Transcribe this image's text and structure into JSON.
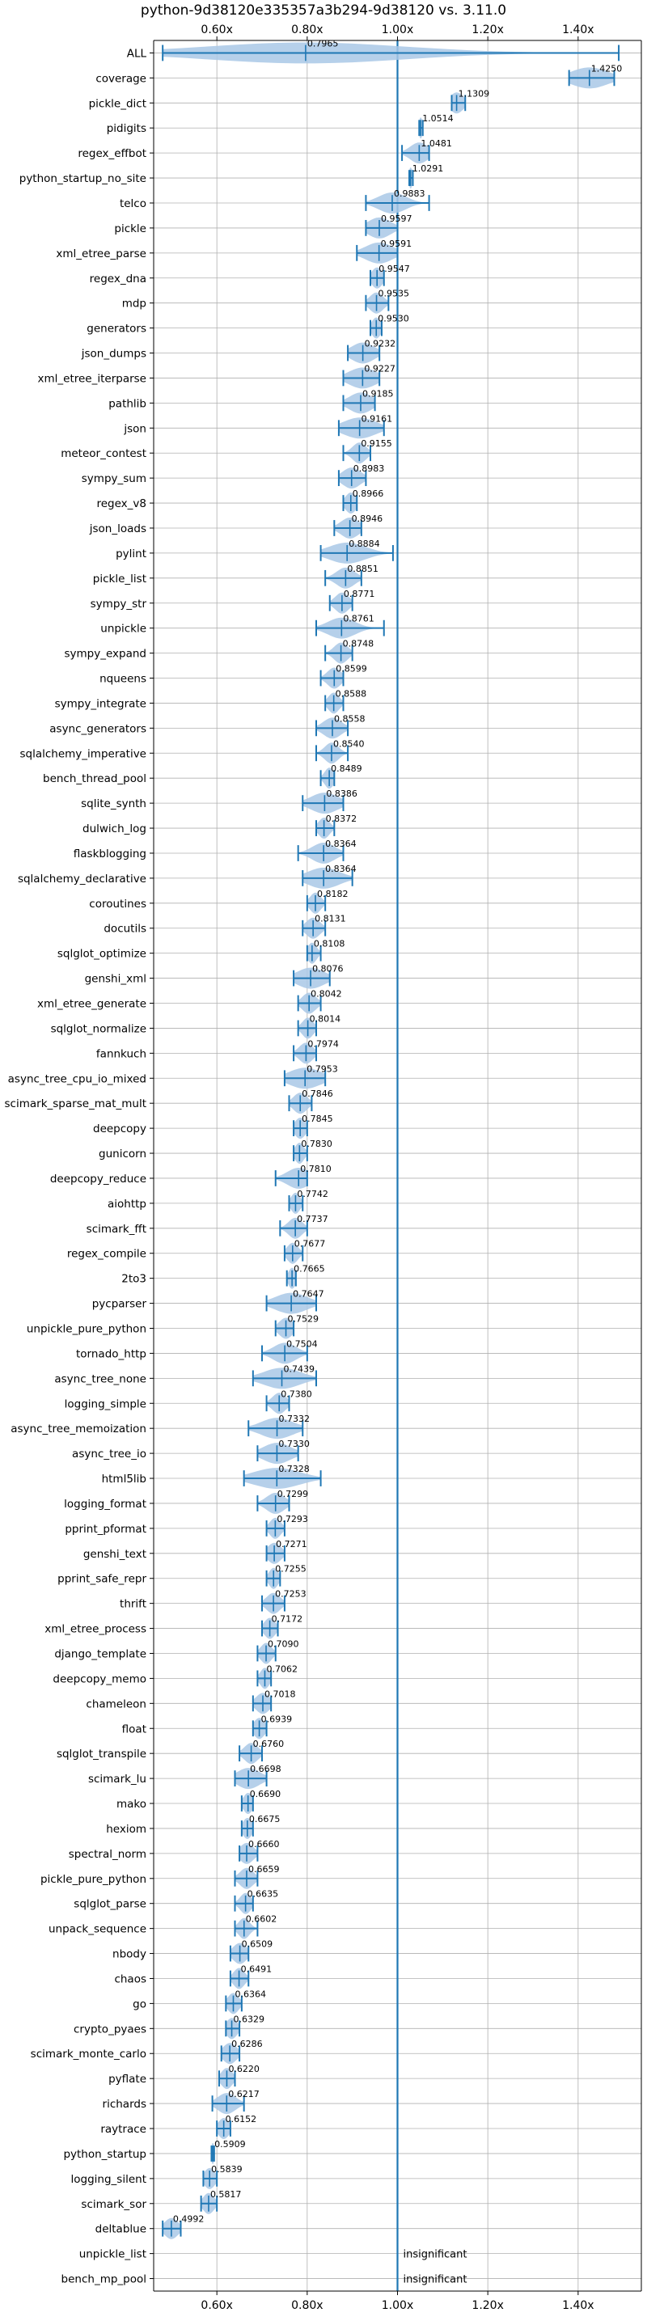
{
  "chart_data": {
    "type": "violin",
    "title": "python-9d38120e335357a3b294-9d38120 vs. 3.11.0",
    "xlabel": "",
    "ylabel": "",
    "xlim": [
      0.46,
      1.54
    ],
    "x_ticks": [
      0.6,
      0.8,
      1.0,
      1.2,
      1.4
    ],
    "x_tick_labels": [
      "0.60x",
      "0.80x",
      "1.00x",
      "1.20x",
      "1.40x"
    ],
    "reference_line": 1.0,
    "grid": true,
    "colors": {
      "violin": "#a9c8e6",
      "line": "#1f77b4",
      "grid": "#b0b0b0"
    },
    "annotation_text_for_missing": "insignificant",
    "benchmarks": [
      {
        "name": "ALL",
        "value": 0.7965,
        "label": "0.7965",
        "lo": 0.48,
        "hi": 1.49,
        "spread": 0.22
      },
      {
        "name": "coverage",
        "value": 1.425,
        "label": "1.4250",
        "lo": 1.38,
        "hi": 1.48,
        "spread": 0.04
      },
      {
        "name": "pickle_dict",
        "value": 1.1309,
        "label": "1.1309",
        "lo": 1.12,
        "hi": 1.15,
        "spread": 0.015
      },
      {
        "name": "pidigits",
        "value": 1.0514,
        "label": "1.0514",
        "lo": 1.048,
        "hi": 1.056,
        "spread": 0.004
      },
      {
        "name": "regex_effbot",
        "value": 1.0481,
        "label": "1.0481",
        "lo": 1.01,
        "hi": 1.07,
        "spread": 0.02
      },
      {
        "name": "python_startup_no_site",
        "value": 1.0291,
        "label": "1.0291",
        "lo": 1.026,
        "hi": 1.034,
        "spread": 0.004
      },
      {
        "name": "telco",
        "value": 0.9883,
        "label": "0.9883",
        "lo": 0.93,
        "hi": 1.07,
        "spread": 0.03
      },
      {
        "name": "pickle",
        "value": 0.9597,
        "label": "0.9597",
        "lo": 0.93,
        "hi": 1.0,
        "spread": 0.025
      },
      {
        "name": "xml_etree_parse",
        "value": 0.9591,
        "label": "0.9591",
        "lo": 0.91,
        "hi": 1.0,
        "spread": 0.03
      },
      {
        "name": "regex_dna",
        "value": 0.9547,
        "label": "0.9547",
        "lo": 0.94,
        "hi": 0.97,
        "spread": 0.012
      },
      {
        "name": "mdp",
        "value": 0.9535,
        "label": "0.9535",
        "lo": 0.93,
        "hi": 0.98,
        "spread": 0.015
      },
      {
        "name": "generators",
        "value": 0.953,
        "label": "0.9530",
        "lo": 0.94,
        "hi": 0.965,
        "spread": 0.01
      },
      {
        "name": "json_dumps",
        "value": 0.9232,
        "label": "0.9232",
        "lo": 0.89,
        "hi": 0.96,
        "spread": 0.025
      },
      {
        "name": "xml_etree_iterparse",
        "value": 0.9227,
        "label": "0.9227",
        "lo": 0.88,
        "hi": 0.96,
        "spread": 0.03
      },
      {
        "name": "pathlib",
        "value": 0.9185,
        "label": "0.9185",
        "lo": 0.88,
        "hi": 0.95,
        "spread": 0.025
      },
      {
        "name": "json",
        "value": 0.9161,
        "label": "0.9161",
        "lo": 0.87,
        "hi": 0.97,
        "spread": 0.035
      },
      {
        "name": "meteor_contest",
        "value": 0.9155,
        "label": "0.9155",
        "lo": 0.88,
        "hi": 0.94,
        "spread": 0.015
      },
      {
        "name": "sympy_sum",
        "value": 0.8983,
        "label": "0.8983",
        "lo": 0.87,
        "hi": 0.93,
        "spread": 0.02
      },
      {
        "name": "regex_v8",
        "value": 0.8966,
        "label": "0.8966",
        "lo": 0.88,
        "hi": 0.91,
        "spread": 0.012
      },
      {
        "name": "json_loads",
        "value": 0.8946,
        "label": "0.8946",
        "lo": 0.86,
        "hi": 0.92,
        "spread": 0.02
      },
      {
        "name": "pylint",
        "value": 0.8884,
        "label": "0.8884",
        "lo": 0.83,
        "hi": 0.99,
        "spread": 0.04
      },
      {
        "name": "pickle_list",
        "value": 0.8851,
        "label": "0.8851",
        "lo": 0.84,
        "hi": 0.92,
        "spread": 0.02
      },
      {
        "name": "sympy_str",
        "value": 0.8771,
        "label": "0.8771",
        "lo": 0.85,
        "hi": 0.9,
        "spread": 0.015
      },
      {
        "name": "unpickle",
        "value": 0.8761,
        "label": "0.8761",
        "lo": 0.82,
        "hi": 0.97,
        "spread": 0.03
      },
      {
        "name": "sympy_expand",
        "value": 0.8748,
        "label": "0.8748",
        "lo": 0.84,
        "hi": 0.9,
        "spread": 0.015
      },
      {
        "name": "nqueens",
        "value": 0.8599,
        "label": "0.8599",
        "lo": 0.83,
        "hi": 0.88,
        "spread": 0.015
      },
      {
        "name": "sympy_integrate",
        "value": 0.8588,
        "label": "0.8588",
        "lo": 0.84,
        "hi": 0.88,
        "spread": 0.012
      },
      {
        "name": "async_generators",
        "value": 0.8558,
        "label": "0.8558",
        "lo": 0.82,
        "hi": 0.89,
        "spread": 0.02
      },
      {
        "name": "sqlalchemy_imperative",
        "value": 0.854,
        "label": "0.8540",
        "lo": 0.82,
        "hi": 0.89,
        "spread": 0.015
      },
      {
        "name": "bench_thread_pool",
        "value": 0.8489,
        "label": "0.8489",
        "lo": 0.83,
        "hi": 0.86,
        "spread": 0.01
      },
      {
        "name": "sqlite_synth",
        "value": 0.8386,
        "label": "0.8386",
        "lo": 0.79,
        "hi": 0.88,
        "spread": 0.03
      },
      {
        "name": "dulwich_log",
        "value": 0.8372,
        "label": "0.8372",
        "lo": 0.82,
        "hi": 0.86,
        "spread": 0.012
      },
      {
        "name": "flaskblogging",
        "value": 0.8364,
        "label": "0.8364",
        "lo": 0.78,
        "hi": 0.88,
        "spread": 0.025
      },
      {
        "name": "sqlalchemy_declarative",
        "value": 0.8364,
        "label": "0.8364",
        "lo": 0.79,
        "hi": 0.9,
        "spread": 0.035
      },
      {
        "name": "coroutines",
        "value": 0.8182,
        "label": "0.8182",
        "lo": 0.8,
        "hi": 0.84,
        "spread": 0.012
      },
      {
        "name": "docutils",
        "value": 0.8131,
        "label": "0.8131",
        "lo": 0.79,
        "hi": 0.84,
        "spread": 0.015
      },
      {
        "name": "sqlglot_optimize",
        "value": 0.8108,
        "label": "0.8108",
        "lo": 0.8,
        "hi": 0.83,
        "spread": 0.01
      },
      {
        "name": "genshi_xml",
        "value": 0.8076,
        "label": "0.8076",
        "lo": 0.77,
        "hi": 0.85,
        "spread": 0.03
      },
      {
        "name": "xml_etree_generate",
        "value": 0.8042,
        "label": "0.8042",
        "lo": 0.78,
        "hi": 0.83,
        "spread": 0.015
      },
      {
        "name": "sqlglot_normalize",
        "value": 0.8014,
        "label": "0.8014",
        "lo": 0.78,
        "hi": 0.82,
        "spread": 0.012
      },
      {
        "name": "fannkuch",
        "value": 0.7974,
        "label": "0.7974",
        "lo": 0.77,
        "hi": 0.82,
        "spread": 0.015
      },
      {
        "name": "async_tree_cpu_io_mixed",
        "value": 0.7953,
        "label": "0.7953",
        "lo": 0.75,
        "hi": 0.84,
        "spread": 0.035
      },
      {
        "name": "scimark_sparse_mat_mult",
        "value": 0.7846,
        "label": "0.7846",
        "lo": 0.76,
        "hi": 0.81,
        "spread": 0.015
      },
      {
        "name": "deepcopy",
        "value": 0.7845,
        "label": "0.7845",
        "lo": 0.77,
        "hi": 0.8,
        "spread": 0.012
      },
      {
        "name": "gunicorn",
        "value": 0.783,
        "label": "0.7830",
        "lo": 0.77,
        "hi": 0.8,
        "spread": 0.01
      },
      {
        "name": "deepcopy_reduce",
        "value": 0.781,
        "label": "0.7810",
        "lo": 0.73,
        "hi": 0.8,
        "spread": 0.025
      },
      {
        "name": "aiohttp",
        "value": 0.7742,
        "label": "0.7742",
        "lo": 0.76,
        "hi": 0.79,
        "spread": 0.01
      },
      {
        "name": "scimark_fft",
        "value": 0.7737,
        "label": "0.7737",
        "lo": 0.74,
        "hi": 0.8,
        "spread": 0.015
      },
      {
        "name": "regex_compile",
        "value": 0.7677,
        "label": "0.7677",
        "lo": 0.75,
        "hi": 0.79,
        "spread": 0.012
      },
      {
        "name": "2to3",
        "value": 0.7665,
        "label": "0.7665",
        "lo": 0.755,
        "hi": 0.775,
        "spread": 0.008
      },
      {
        "name": "pycparser",
        "value": 0.7647,
        "label": "0.7647",
        "lo": 0.71,
        "hi": 0.82,
        "spread": 0.035
      },
      {
        "name": "unpickle_pure_python",
        "value": 0.7529,
        "label": "0.7529",
        "lo": 0.73,
        "hi": 0.77,
        "spread": 0.015
      },
      {
        "name": "tornado_http",
        "value": 0.7504,
        "label": "0.7504",
        "lo": 0.7,
        "hi": 0.8,
        "spread": 0.025
      },
      {
        "name": "async_tree_none",
        "value": 0.7439,
        "label": "0.7439",
        "lo": 0.68,
        "hi": 0.82,
        "spread": 0.04
      },
      {
        "name": "logging_simple",
        "value": 0.738,
        "label": "0.7380",
        "lo": 0.71,
        "hi": 0.76,
        "spread": 0.015
      },
      {
        "name": "async_tree_memoization",
        "value": 0.7332,
        "label": "0.7332",
        "lo": 0.67,
        "hi": 0.79,
        "spread": 0.035
      },
      {
        "name": "async_tree_io",
        "value": 0.733,
        "label": "0.7330",
        "lo": 0.69,
        "hi": 0.78,
        "spread": 0.03
      },
      {
        "name": "html5lib",
        "value": 0.7328,
        "label": "0.7328",
        "lo": 0.66,
        "hi": 0.83,
        "spread": 0.05
      },
      {
        "name": "logging_format",
        "value": 0.7299,
        "label": "0.7299",
        "lo": 0.69,
        "hi": 0.76,
        "spread": 0.02
      },
      {
        "name": "pprint_pformat",
        "value": 0.7293,
        "label": "0.7293",
        "lo": 0.71,
        "hi": 0.75,
        "spread": 0.012
      },
      {
        "name": "genshi_text",
        "value": 0.7271,
        "label": "0.7271",
        "lo": 0.71,
        "hi": 0.75,
        "spread": 0.015
      },
      {
        "name": "pprint_safe_repr",
        "value": 0.7255,
        "label": "0.7255",
        "lo": 0.71,
        "hi": 0.74,
        "spread": 0.01
      },
      {
        "name": "thrift",
        "value": 0.7253,
        "label": "0.7253",
        "lo": 0.7,
        "hi": 0.75,
        "spread": 0.015
      },
      {
        "name": "xml_etree_process",
        "value": 0.7172,
        "label": "0.7172",
        "lo": 0.7,
        "hi": 0.735,
        "spread": 0.012
      },
      {
        "name": "django_template",
        "value": 0.709,
        "label": "0.7090",
        "lo": 0.69,
        "hi": 0.73,
        "spread": 0.012
      },
      {
        "name": "deepcopy_memo",
        "value": 0.7062,
        "label": "0.7062",
        "lo": 0.69,
        "hi": 0.72,
        "spread": 0.01
      },
      {
        "name": "chameleon",
        "value": 0.7018,
        "label": "0.7018",
        "lo": 0.68,
        "hi": 0.72,
        "spread": 0.015
      },
      {
        "name": "float",
        "value": 0.6939,
        "label": "0.6939",
        "lo": 0.68,
        "hi": 0.71,
        "spread": 0.012
      },
      {
        "name": "sqlglot_transpile",
        "value": 0.676,
        "label": "0.6760",
        "lo": 0.65,
        "hi": 0.7,
        "spread": 0.015
      },
      {
        "name": "scimark_lu",
        "value": 0.6698,
        "label": "0.6698",
        "lo": 0.64,
        "hi": 0.71,
        "spread": 0.025
      },
      {
        "name": "mako",
        "value": 0.669,
        "label": "0.6690",
        "lo": 0.655,
        "hi": 0.68,
        "spread": 0.01
      },
      {
        "name": "hexiom",
        "value": 0.6675,
        "label": "0.6675",
        "lo": 0.655,
        "hi": 0.68,
        "spread": 0.01
      },
      {
        "name": "spectral_norm",
        "value": 0.666,
        "label": "0.6660",
        "lo": 0.65,
        "hi": 0.69,
        "spread": 0.015
      },
      {
        "name": "pickle_pure_python",
        "value": 0.6659,
        "label": "0.6659",
        "lo": 0.64,
        "hi": 0.69,
        "spread": 0.015
      },
      {
        "name": "sqlglot_parse",
        "value": 0.6635,
        "label": "0.6635",
        "lo": 0.64,
        "hi": 0.68,
        "spread": 0.012
      },
      {
        "name": "unpack_sequence",
        "value": 0.6602,
        "label": "0.6602",
        "lo": 0.64,
        "hi": 0.69,
        "spread": 0.012
      },
      {
        "name": "nbody",
        "value": 0.6509,
        "label": "0.6509",
        "lo": 0.63,
        "hi": 0.67,
        "spread": 0.015
      },
      {
        "name": "chaos",
        "value": 0.6491,
        "label": "0.6491",
        "lo": 0.63,
        "hi": 0.67,
        "spread": 0.012
      },
      {
        "name": "go",
        "value": 0.6364,
        "label": "0.6364",
        "lo": 0.62,
        "hi": 0.655,
        "spread": 0.012
      },
      {
        "name": "crypto_pyaes",
        "value": 0.6329,
        "label": "0.6329",
        "lo": 0.62,
        "hi": 0.65,
        "spread": 0.012
      },
      {
        "name": "scimark_monte_carlo",
        "value": 0.6286,
        "label": "0.6286",
        "lo": 0.61,
        "hi": 0.65,
        "spread": 0.015
      },
      {
        "name": "pyflate",
        "value": 0.622,
        "label": "0.6220",
        "lo": 0.605,
        "hi": 0.64,
        "spread": 0.012
      },
      {
        "name": "richards",
        "value": 0.6217,
        "label": "0.6217",
        "lo": 0.59,
        "hi": 0.66,
        "spread": 0.02
      },
      {
        "name": "raytrace",
        "value": 0.6152,
        "label": "0.6152",
        "lo": 0.6,
        "hi": 0.63,
        "spread": 0.012
      },
      {
        "name": "python_startup",
        "value": 0.5909,
        "label": "0.5909",
        "lo": 0.588,
        "hi": 0.594,
        "spread": 0.004
      },
      {
        "name": "logging_silent",
        "value": 0.5839,
        "label": "0.5839",
        "lo": 0.57,
        "hi": 0.6,
        "spread": 0.012
      },
      {
        "name": "scimark_sor",
        "value": 0.5817,
        "label": "0.5817",
        "lo": 0.565,
        "hi": 0.6,
        "spread": 0.012
      },
      {
        "name": "deltablue",
        "value": 0.4992,
        "label": "0.4992",
        "lo": 0.48,
        "hi": 0.52,
        "spread": 0.015
      },
      {
        "name": "unpickle_list",
        "value": null,
        "label": "",
        "insignificant": true
      },
      {
        "name": "bench_mp_pool",
        "value": null,
        "label": "",
        "insignificant": true
      }
    ]
  }
}
